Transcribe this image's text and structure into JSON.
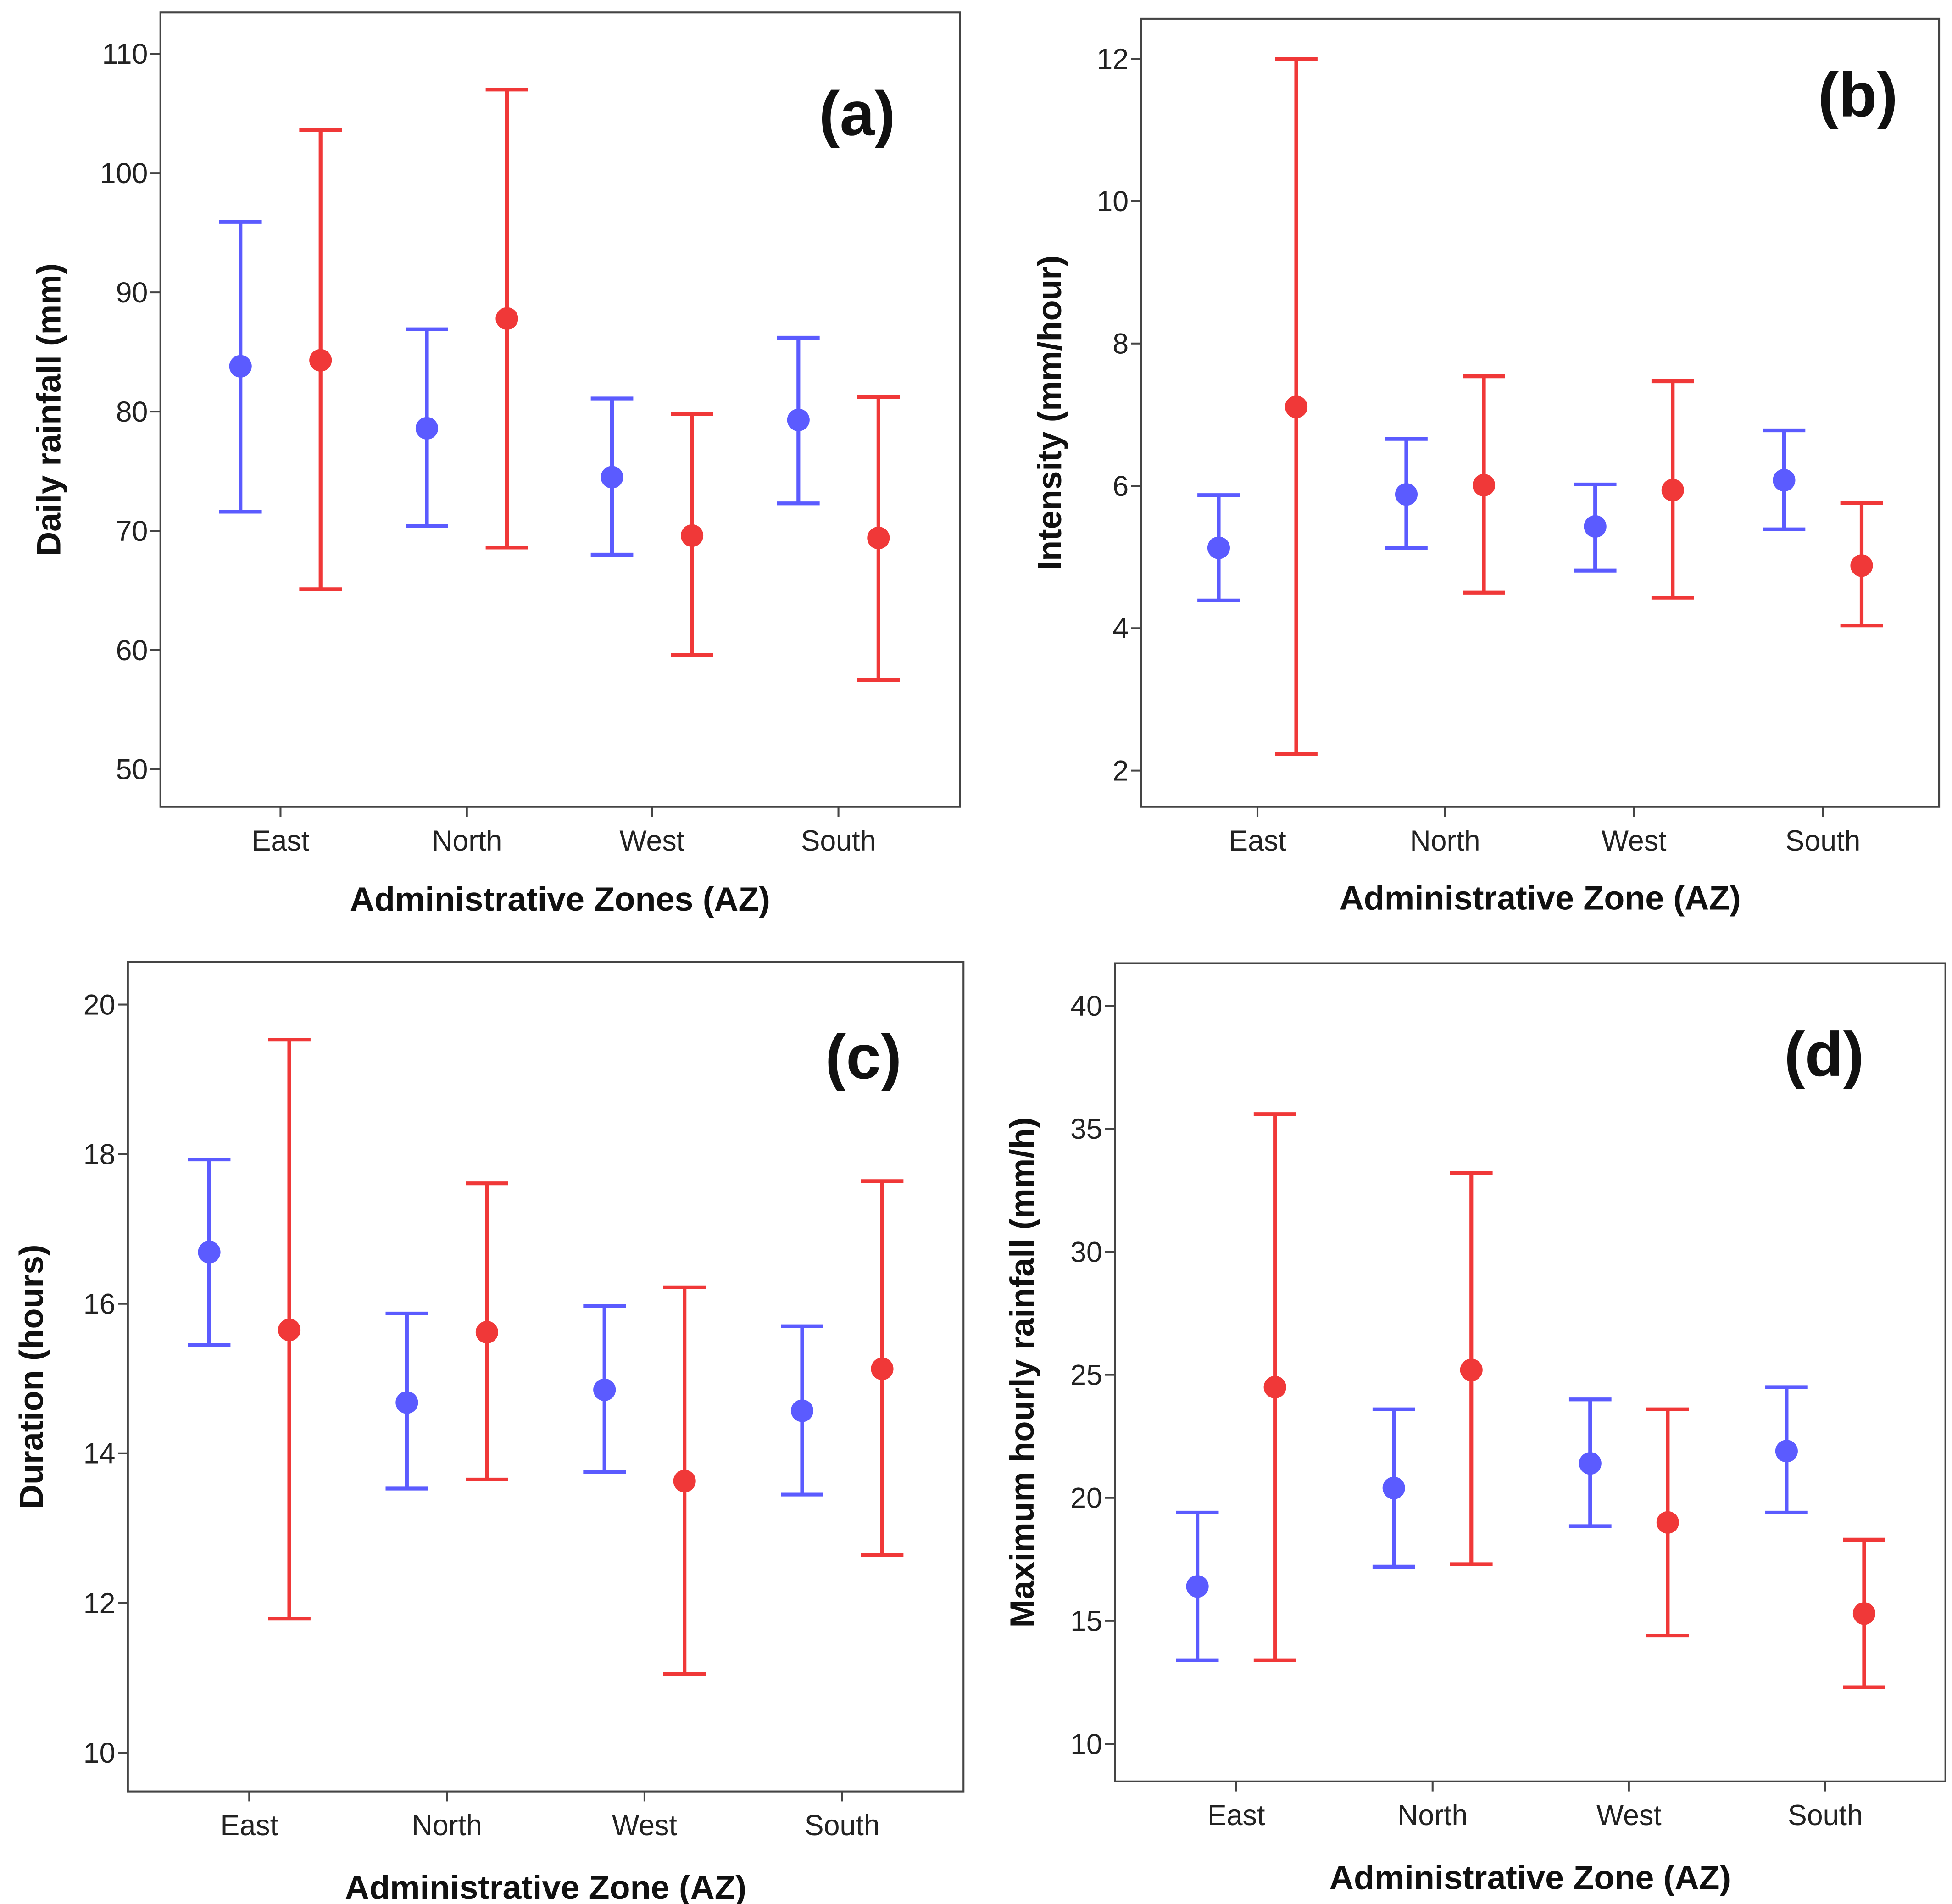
{
  "chart_data": [
    {
      "type": "errorbar",
      "panel_label": "(a)",
      "xlabel": "Administrative Zones (AZ)",
      "ylabel": "Daily rainfall (mm)",
      "categories": [
        "East",
        "North",
        "West",
        "South"
      ],
      "ylim": [
        50,
        110
      ],
      "yticks": [
        50,
        60,
        70,
        80,
        90,
        100,
        110
      ],
      "series": [
        {
          "color": "#5b5bff",
          "mean": [
            83.8,
            78.6,
            74.5,
            79.3
          ],
          "upper": [
            95.9,
            86.9,
            81.1,
            86.2
          ],
          "lower": [
            71.6,
            70.4,
            68.0,
            72.3
          ]
        },
        {
          "color": "#f03838",
          "mean": [
            84.3,
            87.8,
            69.6,
            69.4
          ],
          "upper": [
            103.6,
            107.0,
            79.8,
            81.2
          ],
          "lower": [
            65.1,
            68.6,
            59.6,
            57.5
          ]
        }
      ]
    },
    {
      "type": "errorbar",
      "panel_label": "(b)",
      "xlabel": "Administrative Zone (AZ)",
      "ylabel": "Intensity (mm/hour)",
      "categories": [
        "East",
        "North",
        "West",
        "South"
      ],
      "ylim": [
        2,
        12
      ],
      "yticks": [
        2,
        4,
        6,
        8,
        10,
        12
      ],
      "series": [
        {
          "color": "#5b5bff",
          "mean": [
            5.13,
            5.88,
            5.43,
            6.08
          ],
          "upper": [
            5.87,
            6.66,
            6.02,
            6.78
          ],
          "lower": [
            4.39,
            5.13,
            4.81,
            5.39
          ]
        },
        {
          "color": "#f03838",
          "mean": [
            7.11,
            6.01,
            5.94,
            4.88
          ],
          "upper": [
            12.0,
            7.54,
            7.47,
            5.76
          ],
          "lower": [
            2.23,
            4.5,
            4.43,
            4.04
          ]
        }
      ]
    },
    {
      "type": "errorbar",
      "panel_label": "(c)",
      "xlabel": "Administrative Zone (AZ)",
      "ylabel": "Duration (hours)",
      "categories": [
        "East",
        "North",
        "West",
        "South"
      ],
      "ylim": [
        10,
        20
      ],
      "yticks": [
        10,
        12,
        14,
        16,
        18,
        20
      ],
      "series": [
        {
          "color": "#5b5bff",
          "mean": [
            16.69,
            14.68,
            14.85,
            14.57
          ],
          "upper": [
            17.93,
            15.87,
            15.97,
            15.7
          ],
          "lower": [
            15.45,
            13.53,
            13.75,
            13.45
          ]
        },
        {
          "color": "#f03838",
          "mean": [
            15.65,
            15.62,
            13.63,
            15.13
          ],
          "upper": [
            19.53,
            17.61,
            16.22,
            17.64
          ],
          "lower": [
            11.79,
            13.65,
            11.05,
            12.64
          ]
        }
      ]
    },
    {
      "type": "errorbar",
      "panel_label": "(d)",
      "xlabel": "Administrative Zone (AZ)",
      "ylabel": "Maximum hourly rainfall (mm/h)",
      "categories": [
        "East",
        "North",
        "West",
        "South"
      ],
      "ylim": [
        10,
        40
      ],
      "yticks": [
        10,
        15,
        20,
        25,
        30,
        35,
        40
      ],
      "series": [
        {
          "color": "#5b5bff",
          "mean": [
            16.4,
            20.4,
            21.4,
            21.9
          ],
          "upper": [
            19.4,
            23.6,
            24.0,
            24.5
          ],
          "lower": [
            13.4,
            17.2,
            18.85,
            19.4
          ]
        },
        {
          "color": "#f03838",
          "mean": [
            24.5,
            25.2,
            19.0,
            15.3
          ],
          "upper": [
            35.6,
            33.2,
            23.6,
            18.3
          ],
          "lower": [
            13.4,
            17.3,
            14.4,
            12.3
          ]
        }
      ]
    }
  ]
}
